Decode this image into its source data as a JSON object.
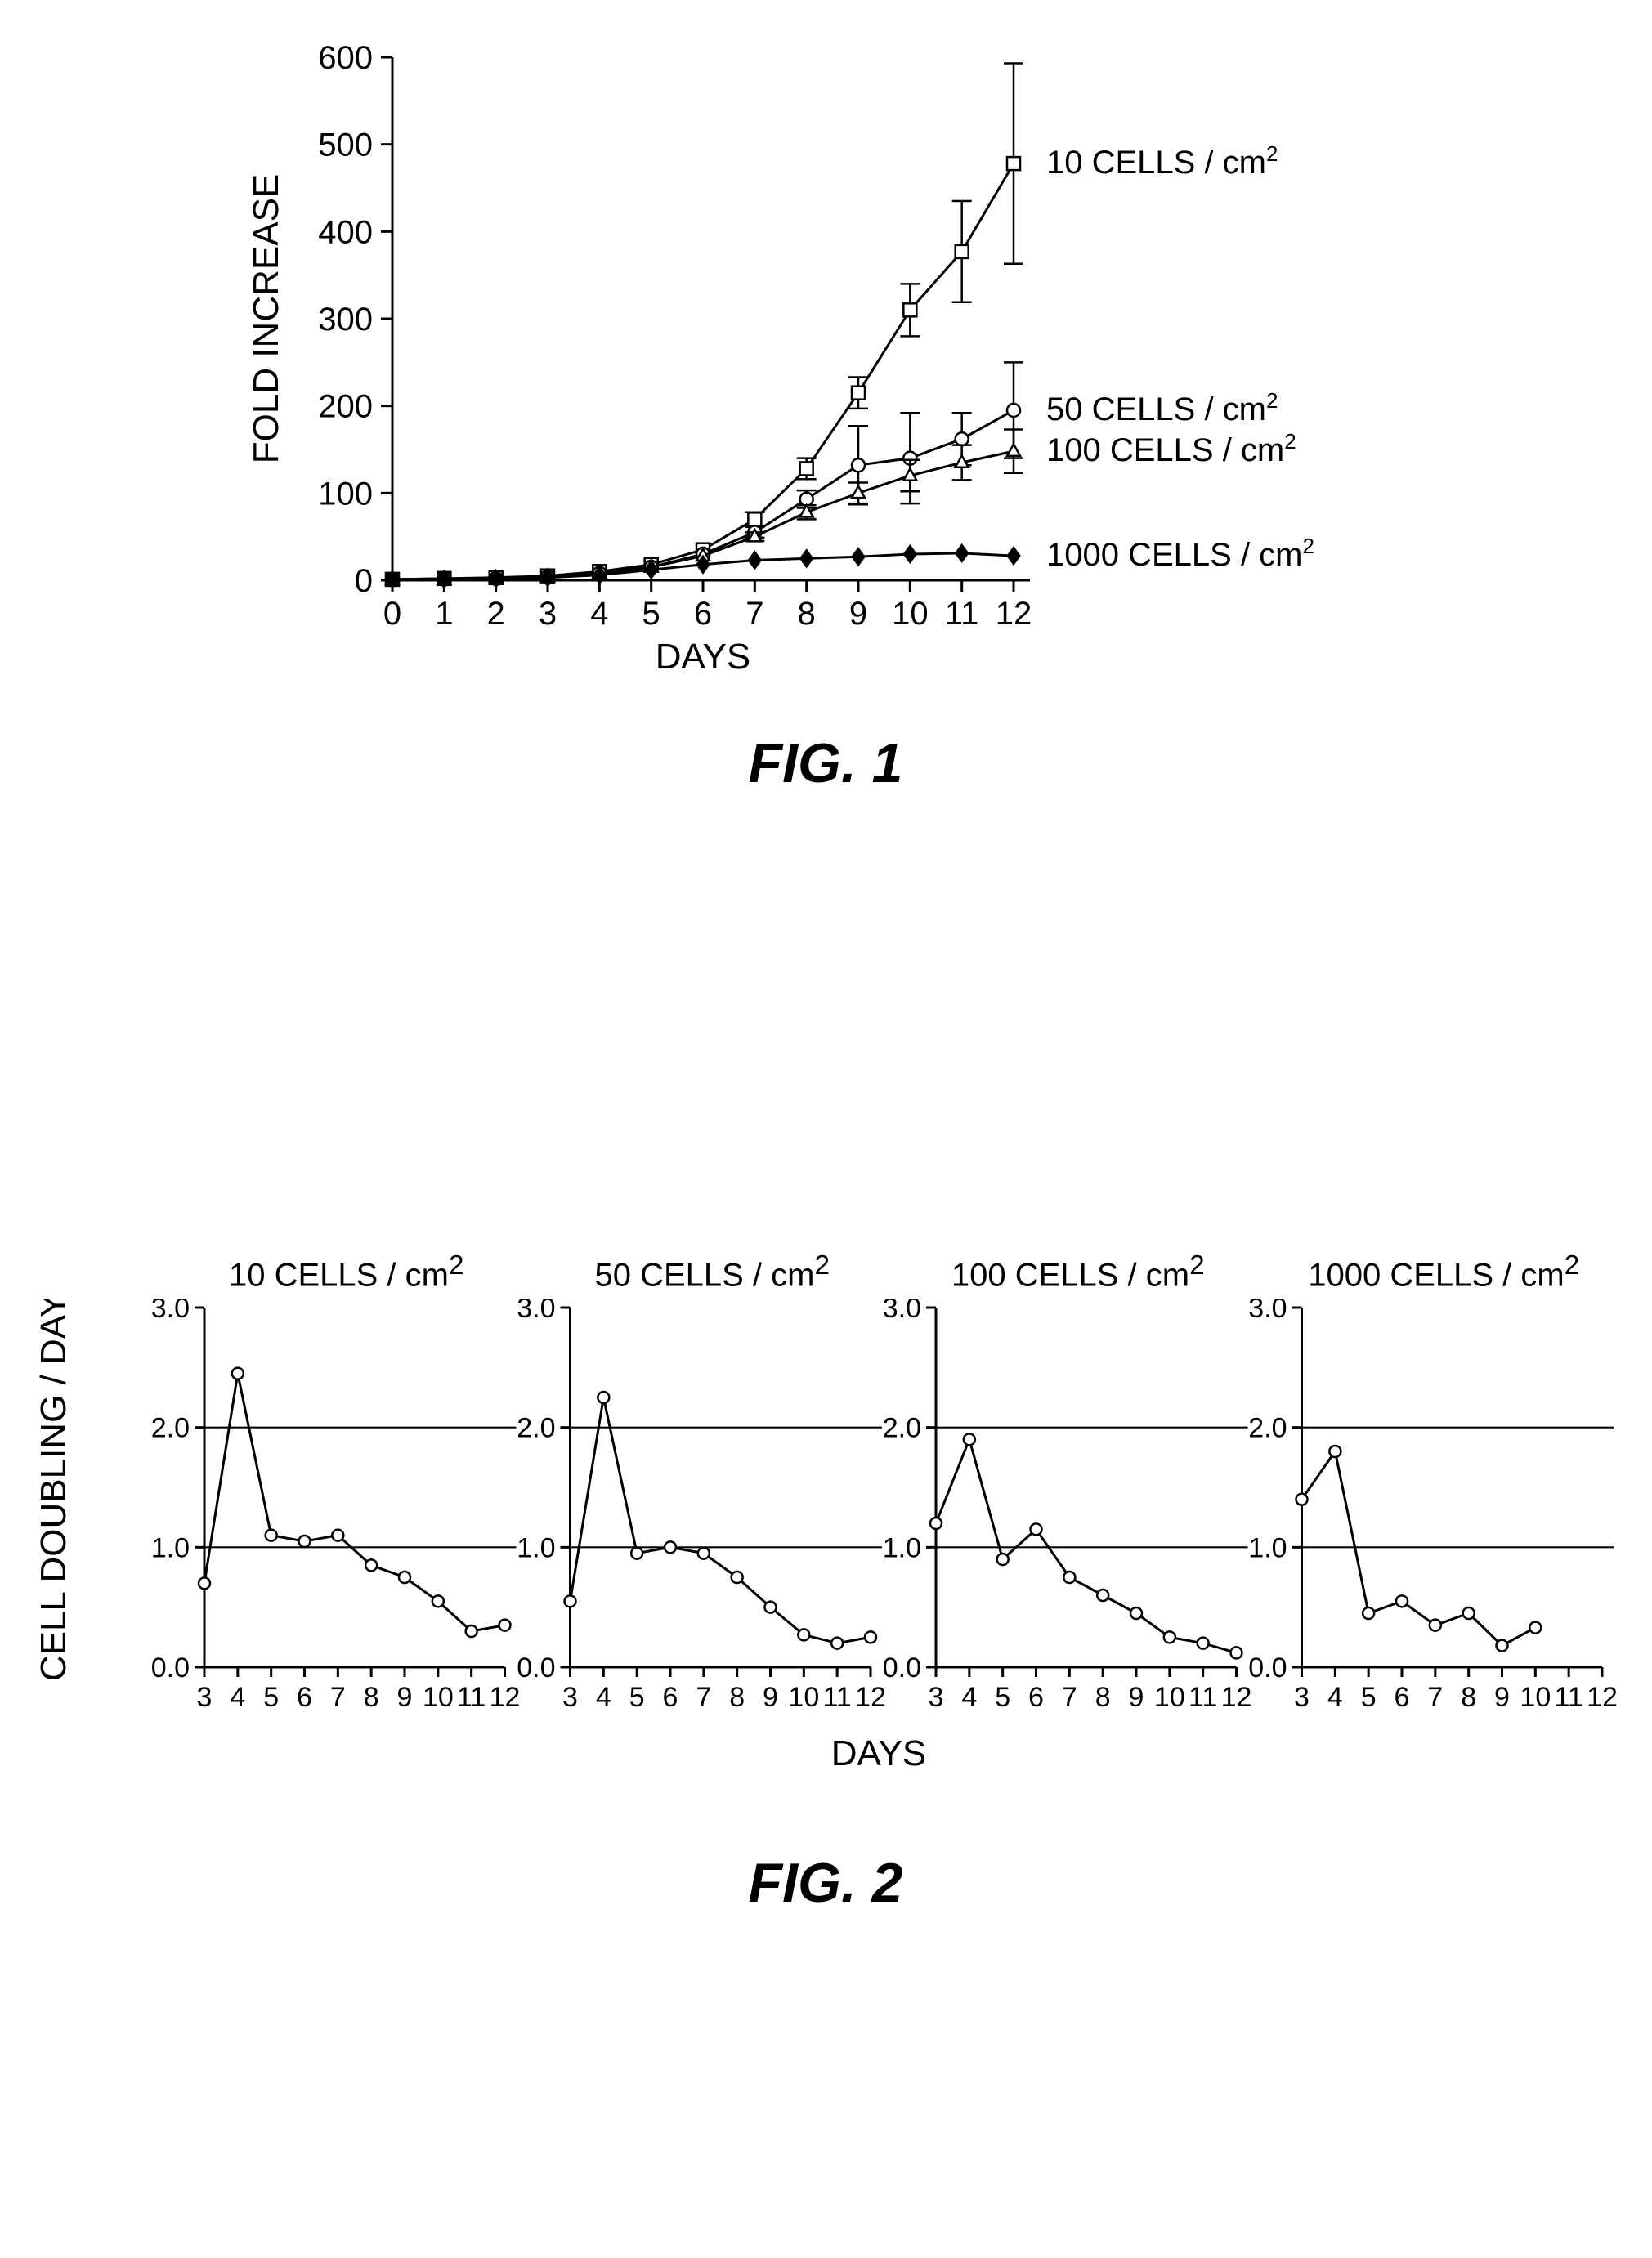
{
  "fig1": {
    "type": "line-errorbar",
    "caption": "FIG. 1",
    "ylabel": "FOLD INCREASE",
    "xlabel": "DAYS",
    "label_fontsize": 44,
    "tick_fontsize": 40,
    "background_color": "#ffffff",
    "axis_color": "#000000",
    "xlim": [
      0,
      12
    ],
    "ylim": [
      0,
      600
    ],
    "xticks": [
      0,
      1,
      2,
      3,
      4,
      5,
      6,
      7,
      8,
      9,
      10,
      11,
      12
    ],
    "yticks": [
      0,
      100,
      200,
      300,
      400,
      500,
      600
    ],
    "line_width": 3,
    "marker_size": 16,
    "errbar_cap": 12,
    "series": [
      {
        "name": "10 CELLS / cm²",
        "label_html": "10 CELLS / cm<sup>2</sup>",
        "marker": "square-open",
        "color": "#000000",
        "fill": "#ffffff",
        "x": [
          0,
          1,
          2,
          3,
          4,
          5,
          6,
          7,
          8,
          9,
          10,
          11,
          12
        ],
        "y": [
          1,
          2,
          3,
          5,
          10,
          18,
          35,
          70,
          128,
          215,
          310,
          377,
          478
        ],
        "err": [
          0,
          0,
          0,
          0,
          0,
          0,
          0,
          8,
          12,
          18,
          30,
          58,
          115
        ]
      },
      {
        "name": "50 CELLS / cm²",
        "label_html": "50 CELLS / cm<sup>2</sup>",
        "marker": "circle-open",
        "color": "#000000",
        "fill": "#ffffff",
        "x": [
          0,
          1,
          2,
          3,
          4,
          5,
          6,
          7,
          8,
          9,
          10,
          11,
          12
        ],
        "y": [
          1,
          2,
          2,
          4,
          8,
          15,
          30,
          55,
          93,
          132,
          140,
          162,
          195
        ],
        "err": [
          0,
          0,
          0,
          0,
          0,
          0,
          0,
          6,
          10,
          45,
          52,
          30,
          55
        ]
      },
      {
        "name": "100 CELLS / cm²",
        "label_html": "100 CELLS / cm<sup>2</sup>",
        "marker": "triangle-open",
        "color": "#000000",
        "fill": "#ffffff",
        "x": [
          0,
          1,
          2,
          3,
          4,
          5,
          6,
          7,
          8,
          9,
          10,
          11,
          12
        ],
        "y": [
          1,
          1,
          2,
          4,
          8,
          15,
          28,
          50,
          78,
          100,
          120,
          135,
          148
        ],
        "err": [
          0,
          0,
          0,
          0,
          0,
          0,
          0,
          5,
          8,
          12,
          18,
          20,
          25
        ]
      },
      {
        "name": "1000 CELLS / cm²",
        "label_html": "1000 CELLS / cm<sup>2</sup>",
        "marker": "diamond-filled",
        "color": "#000000",
        "fill": "#000000",
        "x": [
          0,
          1,
          2,
          3,
          4,
          5,
          6,
          7,
          8,
          9,
          10,
          11,
          12
        ],
        "y": [
          1,
          1,
          2,
          3,
          6,
          12,
          18,
          23,
          25,
          27,
          30,
          31,
          28
        ],
        "err": [
          0,
          0,
          0,
          0,
          0,
          0,
          0,
          0,
          0,
          0,
          0,
          0,
          0
        ]
      }
    ]
  },
  "fig2": {
    "type": "small-multiples-line",
    "caption": "FIG. 2",
    "ylabel": "CELL DOUBLING / DAY",
    "xlabel": "DAYS",
    "label_fontsize": 44,
    "tick_fontsize": 34,
    "title_fontsize": 40,
    "background_color": "#ffffff",
    "axis_color": "#000000",
    "xlim": [
      3,
      12
    ],
    "ylim": [
      0.0,
      3.0
    ],
    "xticks": [
      3,
      4,
      5,
      6,
      7,
      8,
      9,
      10,
      11,
      12
    ],
    "yticks": [
      0.0,
      1.0,
      2.0,
      3.0
    ],
    "ref_lines": [
      1.0,
      2.0
    ],
    "line_width": 3,
    "marker_size": 14,
    "marker": "circle-open",
    "marker_color": "#000000",
    "marker_fill": "#ffffff",
    "panels": [
      {
        "title_html": "10 CELLS / cm<sup>2</sup>",
        "x": [
          3,
          4,
          5,
          6,
          7,
          8,
          9,
          10,
          11,
          12
        ],
        "y": [
          0.7,
          2.45,
          1.1,
          1.05,
          1.1,
          0.85,
          0.75,
          0.55,
          0.3,
          0.35
        ]
      },
      {
        "title_html": "50 CELLS / cm<sup>2</sup>",
        "x": [
          3,
          4,
          5,
          6,
          7,
          8,
          9,
          10,
          11,
          12
        ],
        "y": [
          0.55,
          2.25,
          0.95,
          1.0,
          0.95,
          0.75,
          0.5,
          0.27,
          0.2,
          0.25
        ]
      },
      {
        "title_html": "100 CELLS / cm<sup>2</sup>",
        "x": [
          3,
          4,
          5,
          6,
          7,
          8,
          9,
          10,
          11,
          12
        ],
        "y": [
          1.2,
          1.9,
          0.9,
          1.15,
          0.75,
          0.6,
          0.45,
          0.25,
          0.2,
          0.12
        ]
      },
      {
        "title_html": "1000 CELLS / cm<sup>2</sup>",
        "x": [
          3,
          4,
          5,
          6,
          7,
          8,
          9,
          10,
          11,
          12
        ],
        "y": [
          1.4,
          1.8,
          0.45,
          0.55,
          0.35,
          0.45,
          0.18,
          0.33,
          null,
          null
        ]
      }
    ]
  }
}
